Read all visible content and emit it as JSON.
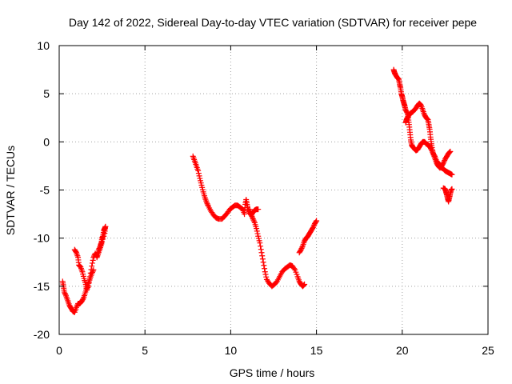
{
  "chart_data": {
    "type": "scatter",
    "title": "Day 142 of 2022, Sidereal Day-to-day VTEC variation (SDTVAR) for receiver pepe",
    "xlabel": "GPS time / hours",
    "ylabel": "SDTVAR / TECUs",
    "xlim": [
      0,
      25
    ],
    "ylim": [
      -20,
      10
    ],
    "xticks": [
      "0",
      "5",
      "10",
      "15",
      "20",
      "25"
    ],
    "yticks": [
      "-20",
      "-15",
      "-10",
      "-5",
      "0",
      "5",
      "10"
    ],
    "grid": true,
    "marker": "+",
    "color": "#ff0000",
    "series": [
      {
        "points": [
          [
            0.2,
            -14.5
          ],
          [
            0.25,
            -15.0
          ],
          [
            0.3,
            -15.6
          ],
          [
            0.4,
            -16.0
          ],
          [
            0.5,
            -16.5
          ],
          [
            0.6,
            -17.0
          ],
          [
            0.7,
            -17.3
          ],
          [
            0.8,
            -17.6
          ],
          [
            0.9,
            -17.7
          ],
          [
            1.0,
            -17.2
          ],
          [
            1.1,
            -16.8
          ],
          [
            1.2,
            -16.8
          ],
          [
            1.3,
            -16.6
          ],
          [
            1.4,
            -16.3
          ],
          [
            1.5,
            -15.8
          ],
          [
            1.6,
            -15.2
          ],
          [
            1.7,
            -14.7
          ],
          [
            1.8,
            -14.2
          ],
          [
            1.9,
            -13.7
          ],
          [
            2.0,
            -13.3
          ]
        ]
      },
      {
        "points": [
          [
            0.9,
            -11.2
          ],
          [
            1.0,
            -11.5
          ],
          [
            1.1,
            -12.0
          ],
          [
            1.15,
            -12.8
          ],
          [
            1.25,
            -13.0
          ],
          [
            1.35,
            -13.5
          ],
          [
            1.45,
            -14.2
          ],
          [
            1.55,
            -14.8
          ],
          [
            1.6,
            -15.4
          ],
          [
            1.7,
            -15.0
          ],
          [
            1.8,
            -14.0
          ],
          [
            1.9,
            -12.9
          ],
          [
            2.0,
            -12.0
          ],
          [
            2.1,
            -11.6
          ],
          [
            2.2,
            -11.9
          ],
          [
            2.3,
            -11.2
          ],
          [
            2.4,
            -10.8
          ],
          [
            2.45,
            -10.5
          ],
          [
            2.5,
            -10.0
          ],
          [
            2.55,
            -9.8
          ],
          [
            2.6,
            -9.2
          ],
          [
            2.65,
            -9.0
          ],
          [
            2.7,
            -8.8
          ],
          [
            2.65,
            -9.5
          ],
          [
            2.5,
            -10.4
          ],
          [
            2.4,
            -11.0
          ],
          [
            2.3,
            -11.5
          ],
          [
            2.2,
            -12.0
          ]
        ]
      },
      {
        "points": [
          [
            7.8,
            -1.5
          ],
          [
            7.9,
            -2.0
          ],
          [
            8.0,
            -2.5
          ],
          [
            8.1,
            -3.0
          ],
          [
            8.2,
            -3.8
          ],
          [
            8.3,
            -4.5
          ],
          [
            8.4,
            -5.2
          ],
          [
            8.5,
            -5.8
          ],
          [
            8.6,
            -6.3
          ],
          [
            8.7,
            -6.7
          ],
          [
            8.85,
            -7.2
          ],
          [
            9.0,
            -7.6
          ],
          [
            9.15,
            -7.9
          ],
          [
            9.3,
            -8.0
          ],
          [
            9.5,
            -8.0
          ],
          [
            9.65,
            -7.7
          ],
          [
            9.8,
            -7.4
          ],
          [
            9.95,
            -7.0
          ],
          [
            10.1,
            -6.8
          ],
          [
            10.25,
            -6.6
          ],
          [
            10.4,
            -6.6
          ],
          [
            10.55,
            -6.8
          ],
          [
            10.7,
            -7.0
          ],
          [
            10.8,
            -7.5
          ],
          [
            10.85,
            -6.5
          ],
          [
            10.9,
            -6.0
          ],
          [
            10.95,
            -6.5
          ],
          [
            11.0,
            -7.0
          ],
          [
            11.1,
            -7.4
          ],
          [
            11.2,
            -7.6
          ],
          [
            11.3,
            -7.3
          ],
          [
            11.4,
            -7.1
          ],
          [
            11.5,
            -7.0
          ],
          [
            11.6,
            -7.0
          ]
        ]
      },
      {
        "points": [
          [
            11.1,
            -7.0
          ],
          [
            11.2,
            -7.6
          ],
          [
            11.3,
            -8.0
          ],
          [
            11.4,
            -8.4
          ],
          [
            11.5,
            -9.0
          ],
          [
            11.6,
            -9.8
          ],
          [
            11.7,
            -10.5
          ],
          [
            11.8,
            -11.5
          ],
          [
            11.9,
            -12.5
          ],
          [
            12.0,
            -13.5
          ],
          [
            12.1,
            -14.3
          ],
          [
            12.25,
            -14.7
          ],
          [
            12.4,
            -15.0
          ],
          [
            12.55,
            -14.8
          ],
          [
            12.7,
            -14.5
          ],
          [
            12.85,
            -14.0
          ],
          [
            13.0,
            -13.5
          ],
          [
            13.15,
            -13.2
          ],
          [
            13.3,
            -13.0
          ],
          [
            13.45,
            -12.8
          ],
          [
            13.6,
            -12.9
          ],
          [
            13.75,
            -13.3
          ],
          [
            13.9,
            -14.0
          ],
          [
            14.0,
            -14.5
          ],
          [
            14.1,
            -14.8
          ],
          [
            14.2,
            -15.0
          ],
          [
            14.3,
            -14.8
          ]
        ]
      },
      {
        "points": [
          [
            14.0,
            -11.5
          ],
          [
            14.1,
            -11.2
          ],
          [
            14.2,
            -10.8
          ],
          [
            14.3,
            -10.3
          ],
          [
            14.4,
            -10.0
          ],
          [
            14.5,
            -9.8
          ],
          [
            14.6,
            -9.5
          ],
          [
            14.7,
            -9.2
          ],
          [
            14.8,
            -8.9
          ],
          [
            14.9,
            -8.5
          ],
          [
            15.0,
            -8.2
          ]
        ]
      },
      {
        "points": [
          [
            19.5,
            7.5
          ],
          [
            19.55,
            7.2
          ],
          [
            19.6,
            7.0
          ],
          [
            19.7,
            6.7
          ],
          [
            19.8,
            6.5
          ],
          [
            19.85,
            6.0
          ],
          [
            19.9,
            5.6
          ],
          [
            19.95,
            5.0
          ],
          [
            20.0,
            4.7
          ],
          [
            20.05,
            4.3
          ],
          [
            20.1,
            4.0
          ],
          [
            20.15,
            3.7
          ],
          [
            20.2,
            3.3
          ],
          [
            20.3,
            3.0
          ],
          [
            20.35,
            2.5
          ],
          [
            20.4,
            1.8
          ],
          [
            20.45,
            1.0
          ],
          [
            20.5,
            0.2
          ],
          [
            20.55,
            -0.3
          ],
          [
            20.6,
            -0.5
          ],
          [
            20.7,
            -0.7
          ],
          [
            20.8,
            -0.9
          ],
          [
            20.9,
            -0.8
          ],
          [
            21.0,
            -0.5
          ],
          [
            21.1,
            -0.2
          ],
          [
            21.2,
            0.0
          ],
          [
            21.3,
            0.0
          ],
          [
            21.4,
            -0.2
          ],
          [
            21.5,
            -0.3
          ],
          [
            21.6,
            -0.5
          ],
          [
            21.7,
            -0.8
          ],
          [
            21.8,
            -1.2
          ],
          [
            21.9,
            -1.7
          ],
          [
            22.0,
            -2.2
          ],
          [
            22.1,
            -2.5
          ],
          [
            22.2,
            -2.7
          ]
        ]
      },
      {
        "points": [
          [
            20.2,
            2.0
          ],
          [
            20.25,
            2.3
          ],
          [
            20.3,
            2.5
          ],
          [
            20.4,
            2.8
          ],
          [
            20.5,
            3.0
          ],
          [
            20.6,
            3.1
          ],
          [
            20.7,
            3.3
          ],
          [
            20.8,
            3.5
          ],
          [
            20.9,
            3.8
          ],
          [
            21.0,
            4.0
          ],
          [
            21.1,
            3.8
          ],
          [
            21.2,
            3.3
          ],
          [
            21.3,
            2.8
          ],
          [
            21.4,
            2.5
          ],
          [
            21.5,
            2.3
          ],
          [
            21.55,
            1.8
          ],
          [
            21.6,
            1.3
          ],
          [
            21.65,
            0.5
          ],
          [
            21.7,
            -0.2
          ],
          [
            21.75,
            -0.8
          ],
          [
            21.8,
            -1.2
          ],
          [
            21.9,
            -1.5
          ],
          [
            22.0,
            -2.0
          ],
          [
            22.1,
            -2.2
          ],
          [
            22.2,
            -2.4
          ],
          [
            22.3,
            -2.5
          ],
          [
            22.4,
            -2.2
          ],
          [
            22.5,
            -1.8
          ],
          [
            22.6,
            -1.5
          ],
          [
            22.7,
            -1.2
          ],
          [
            22.8,
            -1.0
          ]
        ]
      },
      {
        "points": [
          [
            22.1,
            -2.4
          ],
          [
            22.2,
            -2.6
          ],
          [
            22.3,
            -2.7
          ],
          [
            22.4,
            -2.8
          ],
          [
            22.5,
            -3.0
          ],
          [
            22.6,
            -3.1
          ],
          [
            22.7,
            -3.2
          ],
          [
            22.8,
            -3.3
          ],
          [
            22.9,
            -3.4
          ]
        ]
      },
      {
        "points": [
          [
            22.4,
            -4.8
          ],
          [
            22.5,
            -4.9
          ],
          [
            22.55,
            -5.2
          ],
          [
            22.6,
            -5.5
          ],
          [
            22.65,
            -5.9
          ],
          [
            22.7,
            -6.2
          ],
          [
            22.75,
            -5.8
          ],
          [
            22.8,
            -5.4
          ],
          [
            22.85,
            -5.0
          ],
          [
            22.9,
            -4.9
          ]
        ]
      }
    ]
  }
}
